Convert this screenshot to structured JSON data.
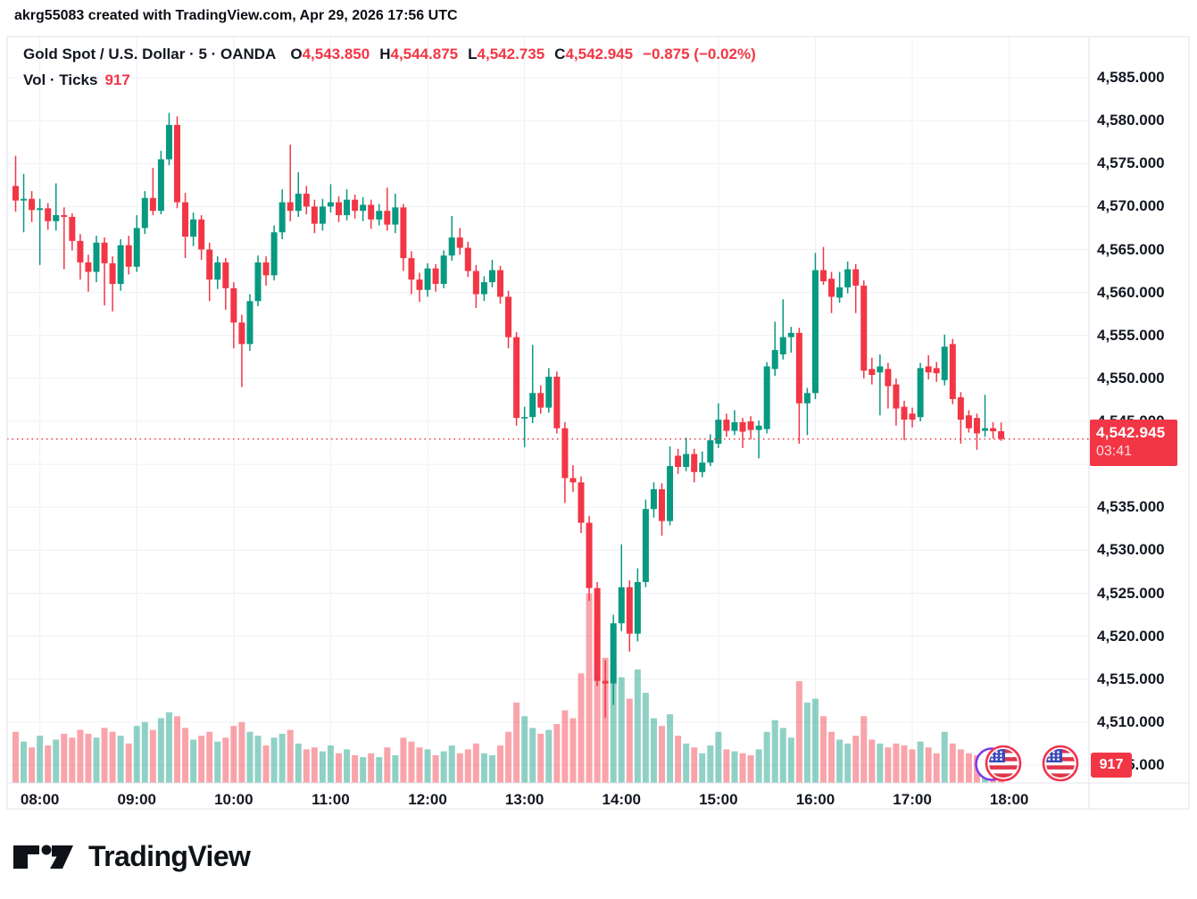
{
  "attribution": "akrg55083 created with TradingView.com, Apr 29, 2026 17:56 UTC",
  "symbol_line": {
    "title": "Gold Spot / U.S. Dollar · 5 · OANDA",
    "o_label": "O",
    "o": "4,543.850",
    "h_label": "H",
    "h": "4,544.875",
    "l_label": "L",
    "l": "4,542.735",
    "c_label": "C",
    "c": "4,542.945",
    "change": "−0.875 (−0.02%)"
  },
  "volume_line": {
    "label": "Vol · Ticks",
    "value": "917"
  },
  "logo": {
    "text": "TradingView"
  },
  "colors": {
    "up": "#089981",
    "down": "#F23645",
    "vol_up": "rgba(8,153,129,0.45)",
    "vol_down": "rgba(242,54,69,0.45)",
    "accent_red": "#F23645",
    "text": "#131722",
    "grid": "#eef0f4",
    "frame": "#e0e3eb"
  },
  "chart_data": {
    "type": "candlestick_with_volume",
    "title": "Gold Spot / U.S. Dollar, 5-minute bars, OANDA",
    "current_price": 4542.945,
    "current_price_label": "4,542.945",
    "countdown": "03:41",
    "current_volume_ticks": 917,
    "y_axis": {
      "min": 4502,
      "max": 4588,
      "tick_step": 5,
      "ticks": [
        4585,
        4580,
        4575,
        4570,
        4565,
        4560,
        4555,
        4550,
        4545,
        4540,
        4535,
        4530,
        4525,
        4520,
        4515,
        4510,
        4505
      ],
      "labels": [
        "4,585.000",
        "4,580.000",
        "4,575.000",
        "4,570.000",
        "4,565.000",
        "4,560.000",
        "4,555.000",
        "4,550.000",
        "4,545.000",
        null,
        "4,535.000",
        "4,530.000",
        "4,525.000",
        "4,520.000",
        "4,515.000",
        "4,510.000",
        "4,505.000"
      ]
    },
    "x_axis": {
      "labels": [
        "08:00",
        "09:00",
        "10:00",
        "11:00",
        "12:00",
        "13:00",
        "14:00",
        "15:00",
        "16:00",
        "17:00",
        "18:00"
      ],
      "first_bar": "07:45",
      "last_bar": "17:55",
      "bar_interval_min": 5
    },
    "bar_format": [
      "time",
      "open",
      "high",
      "low",
      "close",
      "volume_ticks"
    ],
    "bars": [
      [
        "07:45",
        4572.4,
        4575.9,
        4569.4,
        4570.7,
        2600
      ],
      [
        "07:50",
        4570.7,
        4573.8,
        4567.0,
        4570.9,
        2100
      ],
      [
        "07:55",
        4570.9,
        4571.8,
        4568.2,
        4569.6,
        1800
      ],
      [
        "08:00",
        4569.6,
        4570.9,
        4563.2,
        4569.8,
        2400
      ],
      [
        "08:05",
        4569.8,
        4570.4,
        4567.3,
        4568.3,
        1900
      ],
      [
        "08:10",
        4568.3,
        4572.7,
        4567.2,
        4569.0,
        2200
      ],
      [
        "08:15",
        4569.0,
        4569.9,
        4562.7,
        4568.8,
        2500
      ],
      [
        "08:20",
        4568.8,
        4569.2,
        4564.9,
        4566.0,
        2300
      ],
      [
        "08:25",
        4566.0,
        4566.8,
        4561.5,
        4563.5,
        2700
      ],
      [
        "08:30",
        4563.5,
        4564.4,
        4560.1,
        4562.4,
        2500
      ],
      [
        "08:35",
        4562.4,
        4566.6,
        4561.2,
        4565.8,
        2300
      ],
      [
        "08:40",
        4565.8,
        4566.4,
        4558.5,
        4563.4,
        2800
      ],
      [
        "08:45",
        4563.4,
        4564.2,
        4557.8,
        4561.0,
        2600
      ],
      [
        "08:50",
        4561.0,
        4566.2,
        4560.2,
        4565.5,
        2400
      ],
      [
        "08:55",
        4565.5,
        4566.6,
        4562.1,
        4563.0,
        2000
      ],
      [
        "09:00",
        4563.0,
        4569.0,
        4562.4,
        4567.5,
        2900
      ],
      [
        "09:05",
        4567.5,
        4571.8,
        4566.8,
        4571.0,
        3100
      ],
      [
        "09:10",
        4571.0,
        4574.5,
        4569.0,
        4569.5,
        2700
      ],
      [
        "09:15",
        4569.5,
        4576.5,
        4569.1,
        4575.5,
        3300
      ],
      [
        "09:20",
        4575.5,
        4580.9,
        4574.8,
        4579.5,
        3600
      ],
      [
        "09:25",
        4579.5,
        4580.5,
        4569.8,
        4570.5,
        3400
      ],
      [
        "09:30",
        4570.5,
        4571.6,
        4564.0,
        4566.5,
        2800
      ],
      [
        "09:35",
        4566.5,
        4569.3,
        4565.4,
        4568.5,
        2200
      ],
      [
        "09:40",
        4568.5,
        4569.0,
        4563.8,
        4565.0,
        2400
      ],
      [
        "09:45",
        4565.0,
        4565.8,
        4559.0,
        4561.5,
        2600
      ],
      [
        "09:50",
        4561.5,
        4564.2,
        4560.4,
        4563.5,
        2100
      ],
      [
        "09:55",
        4563.5,
        4564.0,
        4558.0,
        4560.5,
        2300
      ],
      [
        "10:00",
        4560.5,
        4561.2,
        4553.5,
        4556.5,
        2900
      ],
      [
        "10:05",
        4556.5,
        4557.4,
        4549.0,
        4554.0,
        3100
      ],
      [
        "10:10",
        4554.0,
        4559.8,
        4553.2,
        4559.0,
        2600
      ],
      [
        "10:15",
        4559.0,
        4564.3,
        4558.4,
        4563.5,
        2400
      ],
      [
        "10:20",
        4563.5,
        4564.2,
        4560.8,
        4562.0,
        1900
      ],
      [
        "10:25",
        4562.0,
        4567.8,
        4561.4,
        4567.0,
        2300
      ],
      [
        "10:30",
        4567.0,
        4572.0,
        4566.2,
        4570.5,
        2500
      ],
      [
        "10:35",
        4570.5,
        4577.2,
        4568.3,
        4569.5,
        2700
      ],
      [
        "10:40",
        4569.5,
        4574.0,
        4568.8,
        4571.5,
        2000
      ],
      [
        "10:45",
        4571.5,
        4572.4,
        4569.1,
        4570.0,
        1700
      ],
      [
        "10:50",
        4570.0,
        4570.8,
        4566.9,
        4568.0,
        1800
      ],
      [
        "10:55",
        4568.0,
        4570.9,
        4567.2,
        4570.0,
        1600
      ],
      [
        "11:00",
        4570.0,
        4572.6,
        4569.3,
        4570.5,
        1900
      ],
      [
        "11:05",
        4570.5,
        4571.2,
        4568.2,
        4569.0,
        1500
      ],
      [
        "11:10",
        4569.0,
        4572.0,
        4568.4,
        4570.8,
        1700
      ],
      [
        "11:15",
        4570.8,
        4571.4,
        4568.6,
        4569.5,
        1400
      ],
      [
        "11:20",
        4569.5,
        4571.1,
        4568.3,
        4570.2,
        1300
      ],
      [
        "11:25",
        4570.2,
        4570.8,
        4567.4,
        4568.5,
        1500
      ],
      [
        "11:30",
        4568.5,
        4570.3,
        4567.8,
        4569.5,
        1300
      ],
      [
        "11:35",
        4569.5,
        4572.2,
        4567.2,
        4567.9,
        1800
      ],
      [
        "11:40",
        4567.9,
        4571.5,
        4566.9,
        4569.9,
        1400
      ],
      [
        "11:45",
        4569.9,
        4570.3,
        4562.5,
        4564.0,
        2300
      ],
      [
        "11:50",
        4564.0,
        4564.8,
        4559.8,
        4561.5,
        2100
      ],
      [
        "11:55",
        4561.5,
        4562.3,
        4558.9,
        4560.3,
        1800
      ],
      [
        "12:00",
        4560.3,
        4563.4,
        4559.5,
        4562.8,
        1700
      ],
      [
        "12:05",
        4562.8,
        4563.3,
        4560.1,
        4561.0,
        1400
      ],
      [
        "12:10",
        4561.0,
        4564.9,
        4560.5,
        4564.3,
        1600
      ],
      [
        "12:15",
        4564.3,
        4568.9,
        4563.7,
        4566.4,
        1900
      ],
      [
        "12:20",
        4566.4,
        4567.5,
        4564.4,
        4565.2,
        1500
      ],
      [
        "12:25",
        4565.2,
        4565.9,
        4561.8,
        4562.5,
        1700
      ],
      [
        "12:30",
        4562.5,
        4563.2,
        4558.2,
        4559.8,
        2000
      ],
      [
        "12:35",
        4559.8,
        4561.9,
        4559.0,
        4561.2,
        1500
      ],
      [
        "12:40",
        4561.2,
        4563.8,
        4560.6,
        4562.6,
        1400
      ],
      [
        "12:45",
        4562.6,
        4563.1,
        4558.7,
        4559.5,
        1900
      ],
      [
        "12:50",
        4559.5,
        4560.2,
        4553.5,
        4554.8,
        2600
      ],
      [
        "12:55",
        4554.8,
        4555.4,
        4544.5,
        4545.4,
        4100
      ],
      [
        "13:00",
        4545.4,
        4546.7,
        4542.0,
        4545.5,
        3400
      ],
      [
        "13:05",
        4545.5,
        4553.9,
        4544.8,
        4548.3,
        2800
      ],
      [
        "13:10",
        4548.3,
        4549.2,
        4545.9,
        4546.6,
        2500
      ],
      [
        "13:15",
        4546.6,
        4551.2,
        4546.0,
        4550.2,
        2700
      ],
      [
        "13:20",
        4550.2,
        4550.8,
        4543.6,
        4544.2,
        3000
      ],
      [
        "13:25",
        4544.2,
        4544.9,
        4535.5,
        4538.4,
        3700
      ],
      [
        "13:30",
        4538.4,
        4539.9,
        4536.8,
        4537.9,
        3300
      ],
      [
        "13:35",
        4537.9,
        4538.6,
        4532.0,
        4533.2,
        5600
      ],
      [
        "13:40",
        4533.2,
        4534.0,
        4524.1,
        4525.6,
        9700
      ],
      [
        "13:45",
        4525.6,
        4526.3,
        4514.2,
        4514.8,
        8300
      ],
      [
        "13:50",
        4514.8,
        4517.2,
        4510.5,
        4514.5,
        6400
      ],
      [
        "13:55",
        4514.5,
        4522.5,
        4512.0,
        4521.5,
        6000
      ],
      [
        "14:00",
        4521.5,
        4530.7,
        4520.6,
        4525.7,
        5400
      ],
      [
        "14:05",
        4525.7,
        4526.5,
        4518.2,
        4520.3,
        4300
      ],
      [
        "14:10",
        4520.3,
        4527.9,
        4519.4,
        4526.3,
        5800
      ],
      [
        "14:15",
        4526.3,
        4535.9,
        4525.7,
        4534.8,
        4600
      ],
      [
        "14:20",
        4534.8,
        4537.9,
        4533.8,
        4537.1,
        3300
      ],
      [
        "14:25",
        4537.1,
        4537.8,
        4531.7,
        4533.4,
        2900
      ],
      [
        "14:30",
        4533.4,
        4542.1,
        4532.9,
        4539.8,
        3500
      ],
      [
        "14:35",
        4541.0,
        4541.8,
        4538.9,
        4539.7,
        2400
      ],
      [
        "14:40",
        4539.7,
        4543.1,
        4539.2,
        4541.2,
        2000
      ],
      [
        "14:45",
        4541.2,
        4541.8,
        4537.9,
        4539.1,
        1800
      ],
      [
        "14:50",
        4539.1,
        4541.5,
        4538.5,
        4540.2,
        1500
      ],
      [
        "14:55",
        4540.2,
        4543.5,
        4539.8,
        4542.8,
        1900
      ],
      [
        "15:00",
        4542.4,
        4547.1,
        4541.9,
        4545.2,
        2600
      ],
      [
        "15:05",
        4545.2,
        4545.9,
        4543.2,
        4543.9,
        1700
      ],
      [
        "15:10",
        4543.9,
        4546.3,
        4543.4,
        4544.9,
        1600
      ],
      [
        "15:15",
        4544.9,
        4545.4,
        4541.9,
        4543.8,
        1500
      ],
      [
        "15:20",
        4545.0,
        4545.6,
        4542.9,
        4544.0,
        1400
      ],
      [
        "15:25",
        4544.0,
        4545.1,
        4540.7,
        4544.5,
        1700
      ],
      [
        "15:30",
        4544.1,
        4551.9,
        4543.6,
        4551.4,
        2600
      ],
      [
        "15:35",
        4551.1,
        4556.6,
        4550.3,
        4553.3,
        3200
      ],
      [
        "15:40",
        4552.8,
        4559.2,
        4552.2,
        4554.8,
        2800
      ],
      [
        "15:45",
        4554.8,
        4556.0,
        4553.0,
        4555.3,
        2300
      ],
      [
        "15:50",
        4555.3,
        4555.9,
        4542.4,
        4547.1,
        5200
      ],
      [
        "15:55",
        4547.1,
        4548.9,
        4543.4,
        4548.3,
        4100
      ],
      [
        "16:00",
        4548.3,
        4564.6,
        4547.6,
        4562.6,
        4300
      ],
      [
        "16:05",
        4562.6,
        4565.3,
        4560.9,
        4561.3,
        3400
      ],
      [
        "16:10",
        4561.6,
        4562.4,
        4557.6,
        4559.5,
        2600
      ],
      [
        "16:15",
        4559.4,
        4562.4,
        4558.8,
        4560.6,
        2200
      ],
      [
        "16:20",
        4560.6,
        4563.6,
        4559.9,
        4562.7,
        2000
      ],
      [
        "16:25",
        4562.7,
        4563.3,
        4557.6,
        4560.8,
        2400
      ],
      [
        "16:30",
        4560.8,
        4561.4,
        4550.0,
        4550.9,
        3400
      ],
      [
        "16:35",
        4551.1,
        4552.4,
        4549.3,
        4550.4,
        2200
      ],
      [
        "16:40",
        4550.7,
        4552.8,
        4545.7,
        4551.4,
        2000
      ],
      [
        "16:45",
        4551.1,
        4551.8,
        4546.5,
        4549.1,
        1800
      ],
      [
        "16:50",
        4549.3,
        4550.0,
        4544.5,
        4546.5,
        2000
      ],
      [
        "16:55",
        4546.7,
        4547.4,
        4542.8,
        4545.2,
        1900
      ],
      [
        "17:00",
        4545.9,
        4546.6,
        4544.3,
        4545.2,
        1700
      ],
      [
        "17:05",
        4545.5,
        4551.8,
        4545.0,
        4551.2,
        2100
      ],
      [
        "17:10",
        4551.4,
        4552.7,
        4549.9,
        4550.7,
        1800
      ],
      [
        "17:15",
        4551.2,
        4551.9,
        4549.6,
        4550.6,
        1500
      ],
      [
        "17:20",
        4549.8,
        4555.1,
        4549.2,
        4553.7,
        2600
      ],
      [
        "17:25",
        4554.0,
        4554.6,
        4547.0,
        4547.6,
        2000
      ],
      [
        "17:30",
        4547.8,
        4548.4,
        4542.4,
        4545.2,
        1700
      ],
      [
        "17:35",
        4545.7,
        4546.3,
        4543.7,
        4544.2,
        1500
      ],
      [
        "17:40",
        4545.4,
        4545.9,
        4541.7,
        4543.6,
        1400
      ],
      [
        "17:45",
        4543.9,
        4548.1,
        4543.2,
        4544.2,
        1600
      ],
      [
        "17:50",
        4544.2,
        4544.9,
        4543.0,
        4543.85,
        1100
      ],
      [
        "17:55",
        4543.85,
        4544.875,
        4542.735,
        4542.945,
        917
      ]
    ]
  }
}
